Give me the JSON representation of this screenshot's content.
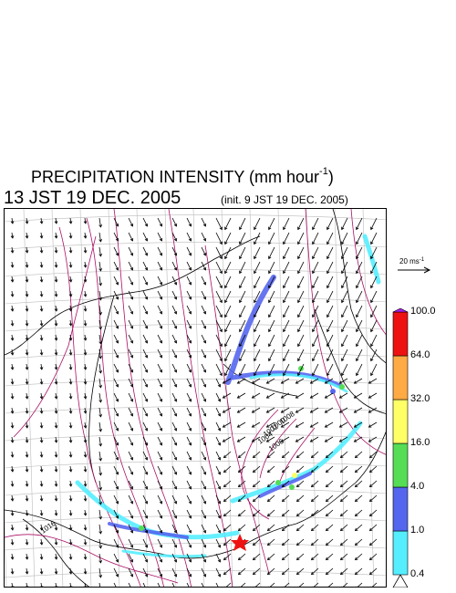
{
  "header": {
    "title_main": "PRECIPITATION INTENSITY (mm hour",
    "title_sup": "-1",
    "title_close": ")",
    "subtitle": "13 JST 19 DEC. 2005",
    "init_note": "(init. 9 JST 19 DEC. 2005)"
  },
  "reference_vector": {
    "label": "20 ms",
    "sup": "-1"
  },
  "colorbar": {
    "levels": [
      "0.4",
      "1.0",
      "4.0",
      "16.0",
      "32.0",
      "64.0",
      "100.0"
    ],
    "colors": [
      "#55eeff",
      "#5566ee",
      "#55dd55",
      "#ffff66",
      "#ffaa44",
      "#ee1111",
      "#aa22ee"
    ]
  },
  "map": {
    "isobar_labels": [
      "1000",
      "1002",
      "1004",
      "1006",
      "1008",
      "1016"
    ],
    "isobar_color": "#aa1166",
    "marker_color": "#ee1111"
  }
}
